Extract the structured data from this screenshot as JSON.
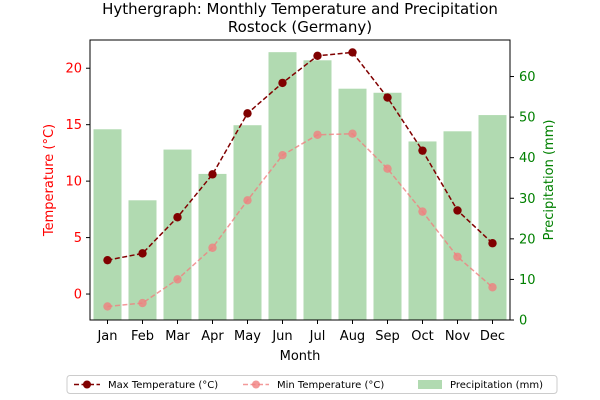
{
  "chart_data": {
    "type": "bar",
    "title": "Hythergraph: Monthly Temperature and Precipitation",
    "subtitle": "Rostock (Germany)",
    "xlabel": "Month",
    "ylabel": "Temperature (°C)",
    "y2label": "Precipitation (mm)",
    "categories": [
      "Jan",
      "Feb",
      "Mar",
      "Apr",
      "May",
      "Jun",
      "Jul",
      "Aug",
      "Sep",
      "Oct",
      "Nov",
      "Dec"
    ],
    "ylim": [
      -2.3,
      22.5
    ],
    "y2lim": [
      0,
      69
    ],
    "yticks": [
      0,
      5,
      10,
      15,
      20
    ],
    "y2ticks": [
      0,
      10,
      20,
      30,
      40,
      50,
      60
    ],
    "legend_position": "bottom",
    "grid": false,
    "colors": {
      "max_temp": "#800000",
      "min_temp": "#f08080",
      "precip": "#90ca90",
      "temp_axis": "#ff0000",
      "precip_axis": "#008000"
    },
    "series": [
      {
        "name": "Max Temperature (°C)",
        "type": "line",
        "axis": "left",
        "values": [
          3.0,
          3.6,
          6.8,
          10.6,
          16.0,
          18.7,
          21.1,
          21.4,
          17.4,
          12.7,
          7.4,
          4.5
        ]
      },
      {
        "name": "Min Temperature (°C)",
        "type": "line",
        "axis": "left",
        "values": [
          -1.1,
          -0.8,
          1.3,
          4.1,
          8.3,
          12.3,
          14.1,
          14.2,
          11.1,
          7.3,
          3.3,
          0.6
        ]
      },
      {
        "name": "Precipitation (mm)",
        "type": "bar",
        "axis": "right",
        "values": [
          47,
          29.5,
          42,
          36,
          48,
          66,
          64,
          57,
          56,
          44,
          46.5,
          50.5
        ]
      }
    ]
  }
}
